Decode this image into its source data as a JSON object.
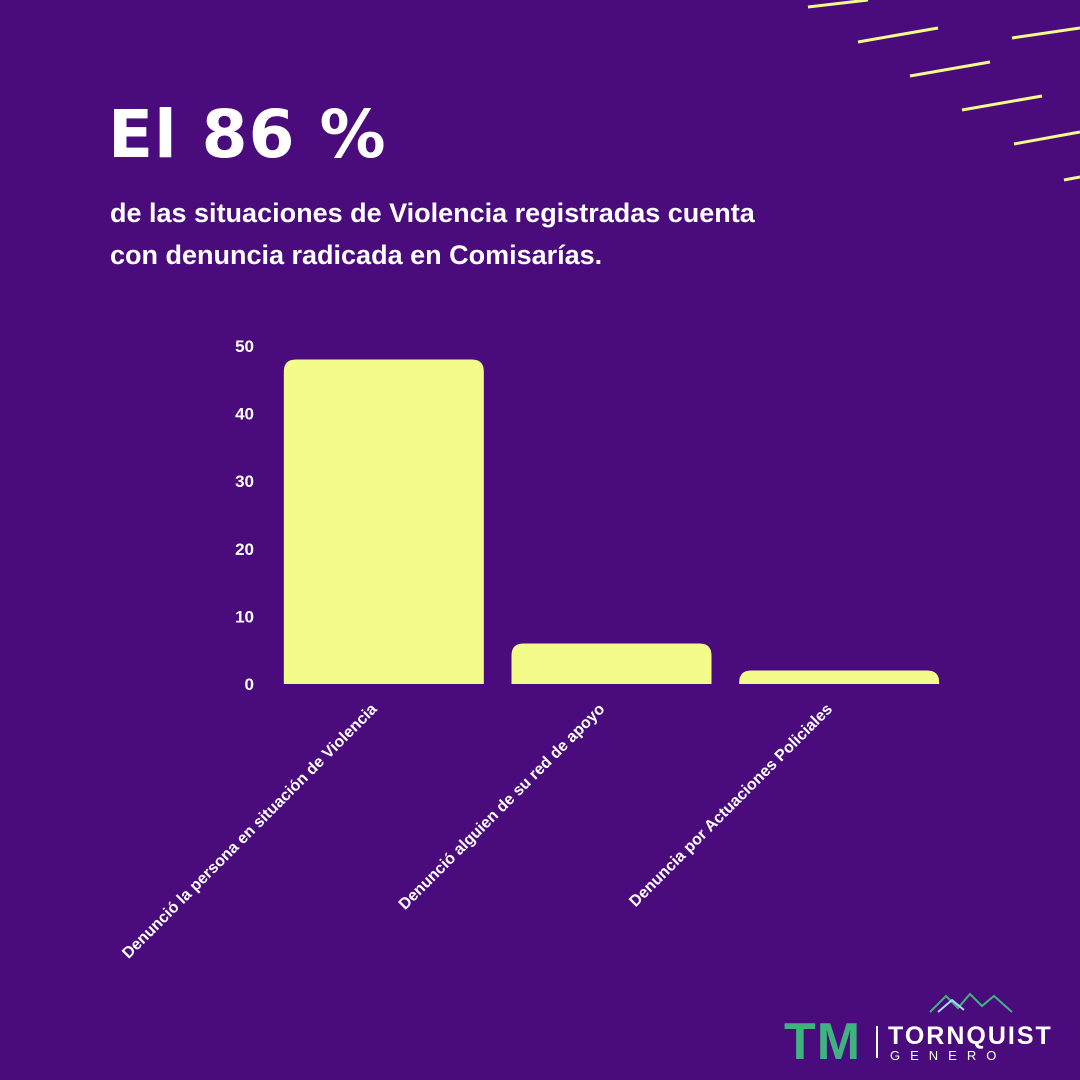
{
  "headline": "El 86 %",
  "subtitle_lines": [
    "de las situaciones de Violencia registradas cuenta",
    "con denuncia radicada en Comisarías."
  ],
  "chart_data": {
    "type": "bar",
    "categories": [
      "Denunció la persona en situación de Violencia",
      "Denunció alguien de su red de apoyo",
      "Denuncia por Actuaciones Policiales"
    ],
    "values": [
      48,
      6,
      2
    ],
    "ylim": [
      0,
      50
    ],
    "yticks": [
      0,
      10,
      20,
      30,
      40,
      50
    ],
    "grid": false,
    "bar_color": "#f3fb8a"
  },
  "logo": {
    "mark": "TM",
    "name": "TORNQUIST",
    "sub": "GENERO"
  },
  "colors": {
    "background": "#4a0c7c",
    "accent": "#f3fb8a",
    "logo_green": "#3fb37f"
  }
}
